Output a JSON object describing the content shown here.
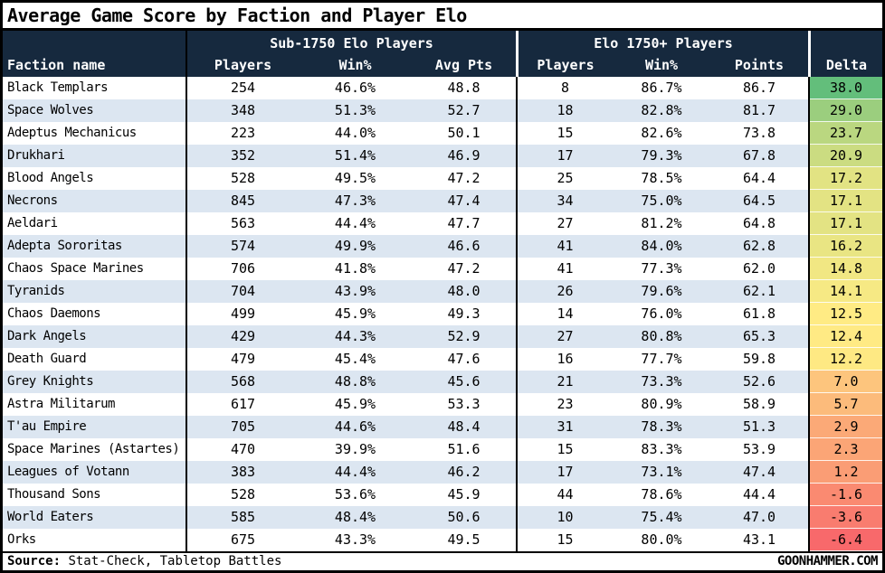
{
  "colors": {
    "header_bg": "#16293E",
    "row_alt": "#DCE6F1",
    "border": "#000000",
    "delta_max_green": "#63BE7B",
    "delta_mid_yellow": "#FFEB84",
    "delta_min_red": "#F8696B"
  },
  "footer": {
    "source_label": "Source:",
    "source_text": " Stat-Check, Tabletop Battles",
    "site": "GOONHAMMER.COM"
  },
  "chart_data": {
    "type": "table",
    "title": "Average Game Score by Faction and Player Elo",
    "column_groups": [
      {
        "label": "Sub-1750 Elo Players",
        "span": [
          "Players",
          "Win%",
          "Avg Pts"
        ]
      },
      {
        "label": "Elo 1750+ Players",
        "span": [
          "Players",
          "Win%",
          "Points"
        ]
      }
    ],
    "columns": [
      "Faction name",
      "Players",
      "Win%",
      "Avg Pts",
      "Players",
      "Win%",
      "Points",
      "Delta"
    ],
    "column_formats": [
      "text",
      "int",
      "pct",
      "dec",
      "int",
      "pct",
      "dec",
      "dec"
    ],
    "rows": [
      [
        "Black Templars",
        254,
        46.6,
        48.8,
        8,
        86.7,
        86.7,
        38.0
      ],
      [
        "Space Wolves",
        348,
        51.3,
        52.7,
        18,
        82.8,
        81.7,
        29.0
      ],
      [
        "Adeptus Mechanicus",
        223,
        44.0,
        50.1,
        15,
        82.6,
        73.8,
        23.7
      ],
      [
        "Drukhari",
        352,
        51.4,
        46.9,
        17,
        79.3,
        67.8,
        20.9
      ],
      [
        "Blood Angels",
        528,
        49.5,
        47.2,
        25,
        78.5,
        64.4,
        17.2
      ],
      [
        "Necrons",
        845,
        47.3,
        47.4,
        34,
        75.0,
        64.5,
        17.1
      ],
      [
        "Aeldari",
        563,
        44.4,
        47.7,
        27,
        81.2,
        64.8,
        17.1
      ],
      [
        "Adepta Sororitas",
        574,
        49.9,
        46.6,
        41,
        84.0,
        62.8,
        16.2
      ],
      [
        "Chaos Space Marines",
        706,
        41.8,
        47.2,
        41,
        77.3,
        62.0,
        14.8
      ],
      [
        "Tyranids",
        704,
        43.9,
        48.0,
        26,
        79.6,
        62.1,
        14.1
      ],
      [
        "Chaos Daemons",
        499,
        45.9,
        49.3,
        14,
        76.0,
        61.8,
        12.5
      ],
      [
        "Dark Angels",
        429,
        44.3,
        52.9,
        27,
        80.8,
        65.3,
        12.4
      ],
      [
        "Death Guard",
        479,
        45.4,
        47.6,
        16,
        77.7,
        59.8,
        12.2
      ],
      [
        "Grey Knights",
        568,
        48.8,
        45.6,
        21,
        73.3,
        52.6,
        7.0
      ],
      [
        "Astra Militarum",
        617,
        45.9,
        53.3,
        23,
        80.9,
        58.9,
        5.7
      ],
      [
        "T'au Empire",
        705,
        44.6,
        48.4,
        31,
        78.3,
        51.3,
        2.9
      ],
      [
        "Space Marines (Astartes)",
        470,
        39.9,
        51.6,
        15,
        83.3,
        53.9,
        2.3
      ],
      [
        "Leagues of Votann",
        383,
        44.4,
        46.2,
        17,
        73.1,
        47.4,
        1.2
      ],
      [
        "Thousand Sons",
        528,
        53.6,
        45.9,
        44,
        78.6,
        44.4,
        -1.6
      ],
      [
        "World Eaters",
        585,
        48.4,
        50.6,
        10,
        75.4,
        47.0,
        -3.6
      ],
      [
        "Orks",
        675,
        43.3,
        49.5,
        15,
        80.0,
        43.1,
        -6.4
      ]
    ],
    "delta_colors": [
      "#63BE7B",
      "#9BCE7E",
      "#BAD780",
      "#CBDC81",
      "#E2E383",
      "#E3E383",
      "#E3E383",
      "#E9E583",
      "#F1E783",
      "#F6E984",
      "#FFEB84",
      "#FFEA84",
      "#FEE983",
      "#FDC57D",
      "#FCBB7B",
      "#FBA977",
      "#FBA576",
      "#FA9D75",
      "#FA8A71",
      "#F97C6F",
      "#F8696B"
    ],
    "legend_position": "none",
    "grid": "alternating-row-shading"
  }
}
